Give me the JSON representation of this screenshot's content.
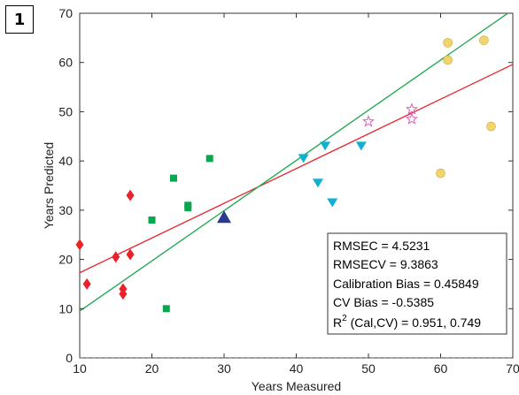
{
  "panel_label": "1",
  "chart_data": {
    "type": "scatter",
    "title": "",
    "xlabel": "Years Measured",
    "ylabel": "Years Predicted",
    "xlim": [
      10,
      70
    ],
    "ylim": [
      0,
      70
    ],
    "xticks": [
      10,
      20,
      30,
      40,
      50,
      60,
      70
    ],
    "yticks": [
      0,
      10,
      20,
      30,
      40,
      50,
      60,
      70
    ],
    "grid": false,
    "legend": "none",
    "series": [
      {
        "marker": "diamond",
        "color": "#e8232a",
        "points": [
          [
            10,
            23
          ],
          [
            11,
            15
          ],
          [
            15,
            20.5
          ],
          [
            16,
            14
          ],
          [
            16,
            13
          ],
          [
            17,
            21
          ],
          [
            17,
            33
          ]
        ]
      },
      {
        "marker": "square",
        "color": "#0aa650",
        "points": [
          [
            20,
            28
          ],
          [
            22,
            10
          ],
          [
            23,
            36.5
          ],
          [
            25,
            31
          ],
          [
            25,
            30.5
          ],
          [
            28,
            40.5
          ]
        ]
      },
      {
        "marker": "triangle-up",
        "color": "#2b3a8f",
        "points": [
          [
            30,
            28.5
          ]
        ]
      },
      {
        "marker": "triangle-down",
        "color": "#12b0cf",
        "points": [
          [
            41,
            40.5
          ],
          [
            43,
            35.5
          ],
          [
            44,
            43
          ],
          [
            45,
            31.5
          ],
          [
            49,
            43
          ]
        ]
      },
      {
        "marker": "star",
        "color": "#e25bb8",
        "points": [
          [
            50,
            48
          ],
          [
            56,
            50.5
          ],
          [
            56,
            48.5
          ]
        ]
      },
      {
        "marker": "circle",
        "color": "#f2d46e",
        "points": [
          [
            60,
            37.5
          ],
          [
            61,
            64
          ],
          [
            61,
            60.5
          ],
          [
            66,
            64.5
          ],
          [
            67,
            47
          ]
        ]
      }
    ],
    "lines": [
      {
        "name": "calibration-fit",
        "color": "#e8232a",
        "points": [
          [
            10,
            17.3
          ],
          [
            70,
            59.6
          ]
        ]
      },
      {
        "name": "cross-validation-fit",
        "color": "#1aa84a",
        "points": [
          [
            10,
            9.5
          ],
          [
            70,
            70.7
          ]
        ]
      }
    ],
    "stats": {
      "rmsec": "RMSEC = 4.5231",
      "rmsecv": "RMSECV = 9.3863",
      "cal_bias": "Calibration Bias = 0.45849",
      "cv_bias": "CV Bias = -0.5385",
      "r2_prefix": "R",
      "r2_sup": "2",
      "r2_suffix": " (Cal,CV) = 0.951, 0.749"
    }
  }
}
